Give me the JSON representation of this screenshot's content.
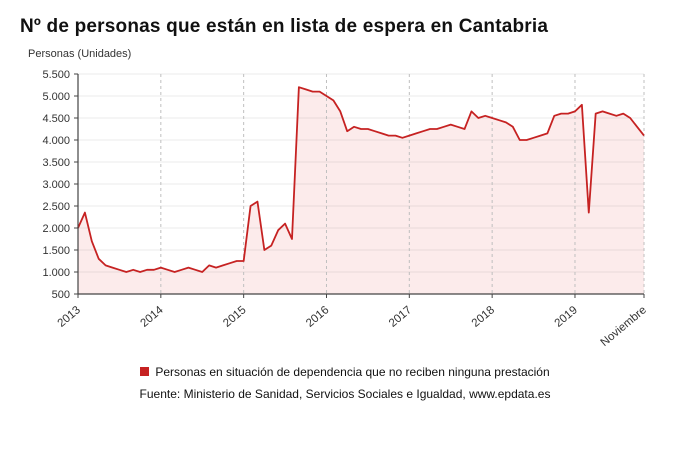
{
  "title": "Nº de personas que están en lista de espera en Cantabria",
  "unit_label": "Personas (Unidades)",
  "legend": {
    "label": "Personas en situación de dependencia que no reciben ninguna prestación"
  },
  "source": "Fuente: Ministerio de Sanidad, Servicios Sociales e Igualdad, www.epdata.es",
  "colors": {
    "line": "#c62222",
    "fill": "#fcebeb",
    "axis": "#444444",
    "grid": "#dddddd",
    "vgrid": "#bfbfbf",
    "tick_text": "#333333"
  },
  "chart_data": {
    "type": "line",
    "title": "Nº de personas que están en lista de espera en Cantabria",
    "xlabel": "",
    "ylabel": "Personas (Unidades)",
    "ylim": [
      500,
      5500
    ],
    "grid": true,
    "legend_position": "bottom",
    "series_name": "Personas en situación de dependencia que no reciben ninguna prestación",
    "yticks": [
      {
        "v": 500,
        "label": "500"
      },
      {
        "v": 1000,
        "label": "1.000"
      },
      {
        "v": 1500,
        "label": "1.500"
      },
      {
        "v": 2000,
        "label": "2.000"
      },
      {
        "v": 2500,
        "label": "2.500"
      },
      {
        "v": 3000,
        "label": "3.000"
      },
      {
        "v": 3500,
        "label": "3.500"
      },
      {
        "v": 4000,
        "label": "4.000"
      },
      {
        "v": 4500,
        "label": "4.500"
      },
      {
        "v": 5000,
        "label": "5.000"
      },
      {
        "v": 5500,
        "label": "5.500"
      }
    ],
    "xticks": [
      {
        "i": 0,
        "label": "2013"
      },
      {
        "i": 12,
        "label": "2014"
      },
      {
        "i": 24,
        "label": "2015"
      },
      {
        "i": 36,
        "label": "2016"
      },
      {
        "i": 48,
        "label": "2017"
      },
      {
        "i": 60,
        "label": "2018"
      },
      {
        "i": 72,
        "label": "2019"
      },
      {
        "i": 82,
        "label": "Noviembre"
      }
    ],
    "values": [
      2000,
      2350,
      1700,
      1300,
      1150,
      1100,
      1050,
      1000,
      1050,
      1000,
      1050,
      1050,
      1100,
      1050,
      1000,
      1050,
      1100,
      1050,
      1000,
      1150,
      1100,
      1150,
      1200,
      1250,
      1250,
      2500,
      2600,
      1500,
      1600,
      1950,
      2100,
      1750,
      5200,
      5150,
      5100,
      5100,
      5000,
      4900,
      4650,
      4200,
      4300,
      4250,
      4250,
      4200,
      4150,
      4100,
      4100,
      4050,
      4100,
      4150,
      4200,
      4250,
      4250,
      4300,
      4350,
      4300,
      4250,
      4650,
      4500,
      4550,
      4500,
      4450,
      4400,
      4300,
      4000,
      4000,
      4050,
      4100,
      4150,
      4550,
      4600,
      4600,
      4650,
      4800,
      2350,
      4600,
      4650,
      4600,
      4550,
      4600,
      4500,
      4300,
      4100
    ]
  }
}
